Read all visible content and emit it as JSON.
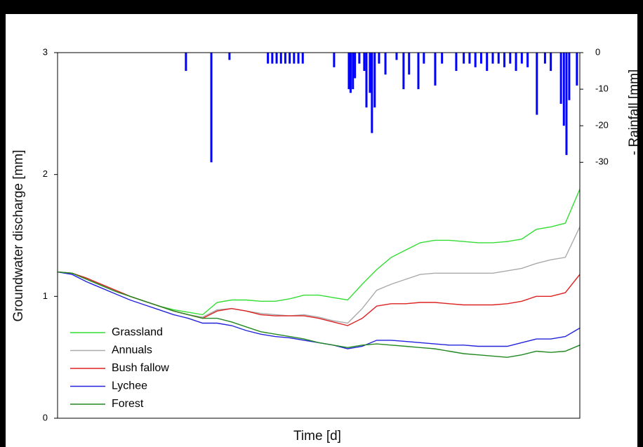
{
  "chart_data": {
    "type": "line",
    "x_label": "Time [d]",
    "y_label": "Groundwater discharge [mm]",
    "y2_label": "- Rainfall [mm]",
    "xlim": [
      0,
      360
    ],
    "ylim": [
      0,
      3
    ],
    "yticks": [
      0,
      1,
      2,
      3
    ],
    "y2lim": [
      -100,
      0
    ],
    "y2ticks": [
      0,
      -10,
      -20,
      -30
    ],
    "legend": "lower left",
    "x": [
      0,
      10,
      20,
      30,
      40,
      50,
      60,
      70,
      80,
      90,
      100,
      110,
      120,
      130,
      140,
      150,
      160,
      170,
      180,
      190,
      200,
      210,
      220,
      230,
      240,
      250,
      260,
      270,
      280,
      290,
      300,
      310,
      320,
      330,
      340,
      350,
      360
    ],
    "series": [
      {
        "name": "Grassland",
        "color": "#33dd33",
        "values": [
          1.2,
          1.19,
          1.15,
          1.1,
          1.05,
          1.0,
          0.96,
          0.92,
          0.89,
          0.87,
          0.85,
          0.95,
          0.97,
          0.97,
          0.96,
          0.96,
          0.98,
          1.01,
          1.01,
          0.99,
          0.97,
          1.1,
          1.22,
          1.32,
          1.38,
          1.44,
          1.46,
          1.46,
          1.45,
          1.44,
          1.44,
          1.45,
          1.47,
          1.55,
          1.57,
          1.6,
          1.88
        ]
      },
      {
        "name": "Annuals",
        "color": "#aaaaaa",
        "values": [
          1.2,
          1.19,
          1.15,
          1.1,
          1.05,
          1.0,
          0.96,
          0.92,
          0.88,
          0.85,
          0.83,
          0.89,
          0.9,
          0.88,
          0.86,
          0.85,
          0.84,
          0.85,
          0.83,
          0.8,
          0.78,
          0.9,
          1.05,
          1.1,
          1.14,
          1.18,
          1.19,
          1.19,
          1.19,
          1.19,
          1.19,
          1.21,
          1.23,
          1.27,
          1.3,
          1.32,
          1.57
        ]
      },
      {
        "name": "Bush fallow",
        "color": "#dd2222",
        "values": [
          1.2,
          1.19,
          1.15,
          1.1,
          1.05,
          1.0,
          0.96,
          0.92,
          0.88,
          0.85,
          0.82,
          0.88,
          0.9,
          0.88,
          0.85,
          0.84,
          0.84,
          0.84,
          0.82,
          0.79,
          0.76,
          0.82,
          0.92,
          0.94,
          0.94,
          0.95,
          0.95,
          0.94,
          0.93,
          0.93,
          0.93,
          0.94,
          0.96,
          1.0,
          1.0,
          1.03,
          1.18
        ]
      },
      {
        "name": "Lychee",
        "color": "#2222dd",
        "values": [
          1.2,
          1.18,
          1.12,
          1.07,
          1.02,
          0.97,
          0.93,
          0.89,
          0.85,
          0.82,
          0.78,
          0.78,
          0.76,
          0.72,
          0.69,
          0.67,
          0.66,
          0.64,
          0.62,
          0.6,
          0.57,
          0.59,
          0.64,
          0.64,
          0.63,
          0.62,
          0.61,
          0.6,
          0.6,
          0.59,
          0.59,
          0.59,
          0.62,
          0.65,
          0.65,
          0.67,
          0.74
        ]
      },
      {
        "name": "Forest",
        "color": "#228822",
        "values": [
          1.2,
          1.19,
          1.14,
          1.09,
          1.04,
          1.0,
          0.96,
          0.92,
          0.88,
          0.85,
          0.82,
          0.82,
          0.79,
          0.75,
          0.71,
          0.69,
          0.67,
          0.65,
          0.62,
          0.6,
          0.58,
          0.6,
          0.61,
          0.6,
          0.59,
          0.58,
          0.57,
          0.55,
          0.53,
          0.52,
          0.51,
          0.5,
          0.52,
          0.55,
          0.54,
          0.55,
          0.6
        ]
      }
    ],
    "rainfall": {
      "type": "bar",
      "axis": "y2",
      "color": "#0000ff",
      "x": [
        88.5,
        106,
        118.5,
        145,
        148,
        151,
        154,
        157,
        160,
        163,
        166,
        169,
        190.6,
        200.8,
        202,
        203.6,
        205,
        208,
        211.4,
        212.9,
        215.3,
        216.7,
        218.6,
        221.6,
        226,
        233.7,
        238.5,
        242.3,
        248.7,
        252.5,
        260.3,
        265,
        274.8,
        280,
        284,
        288,
        292,
        296,
        300,
        304,
        308,
        312,
        316,
        320,
        324,
        330.4,
        336,
        340,
        347,
        349,
        350.8,
        352.7,
        358
      ],
      "values": [
        -5,
        -30,
        -2,
        -3,
        -3,
        -3,
        -3,
        -3,
        -3,
        -3,
        -3,
        -3,
        -4,
        -10,
        -11,
        -10,
        -7,
        -3,
        -5,
        -15,
        -11,
        -22,
        -15,
        -3,
        -6,
        -2,
        -10,
        -6,
        -10,
        -3,
        -9,
        -3,
        -5,
        -3,
        -3,
        -4,
        -3,
        -5,
        -3,
        -3,
        -4,
        -3,
        -5,
        -3,
        -4,
        -17,
        -3,
        -5,
        -14,
        -20,
        -28,
        -13,
        -9
      ]
    }
  }
}
